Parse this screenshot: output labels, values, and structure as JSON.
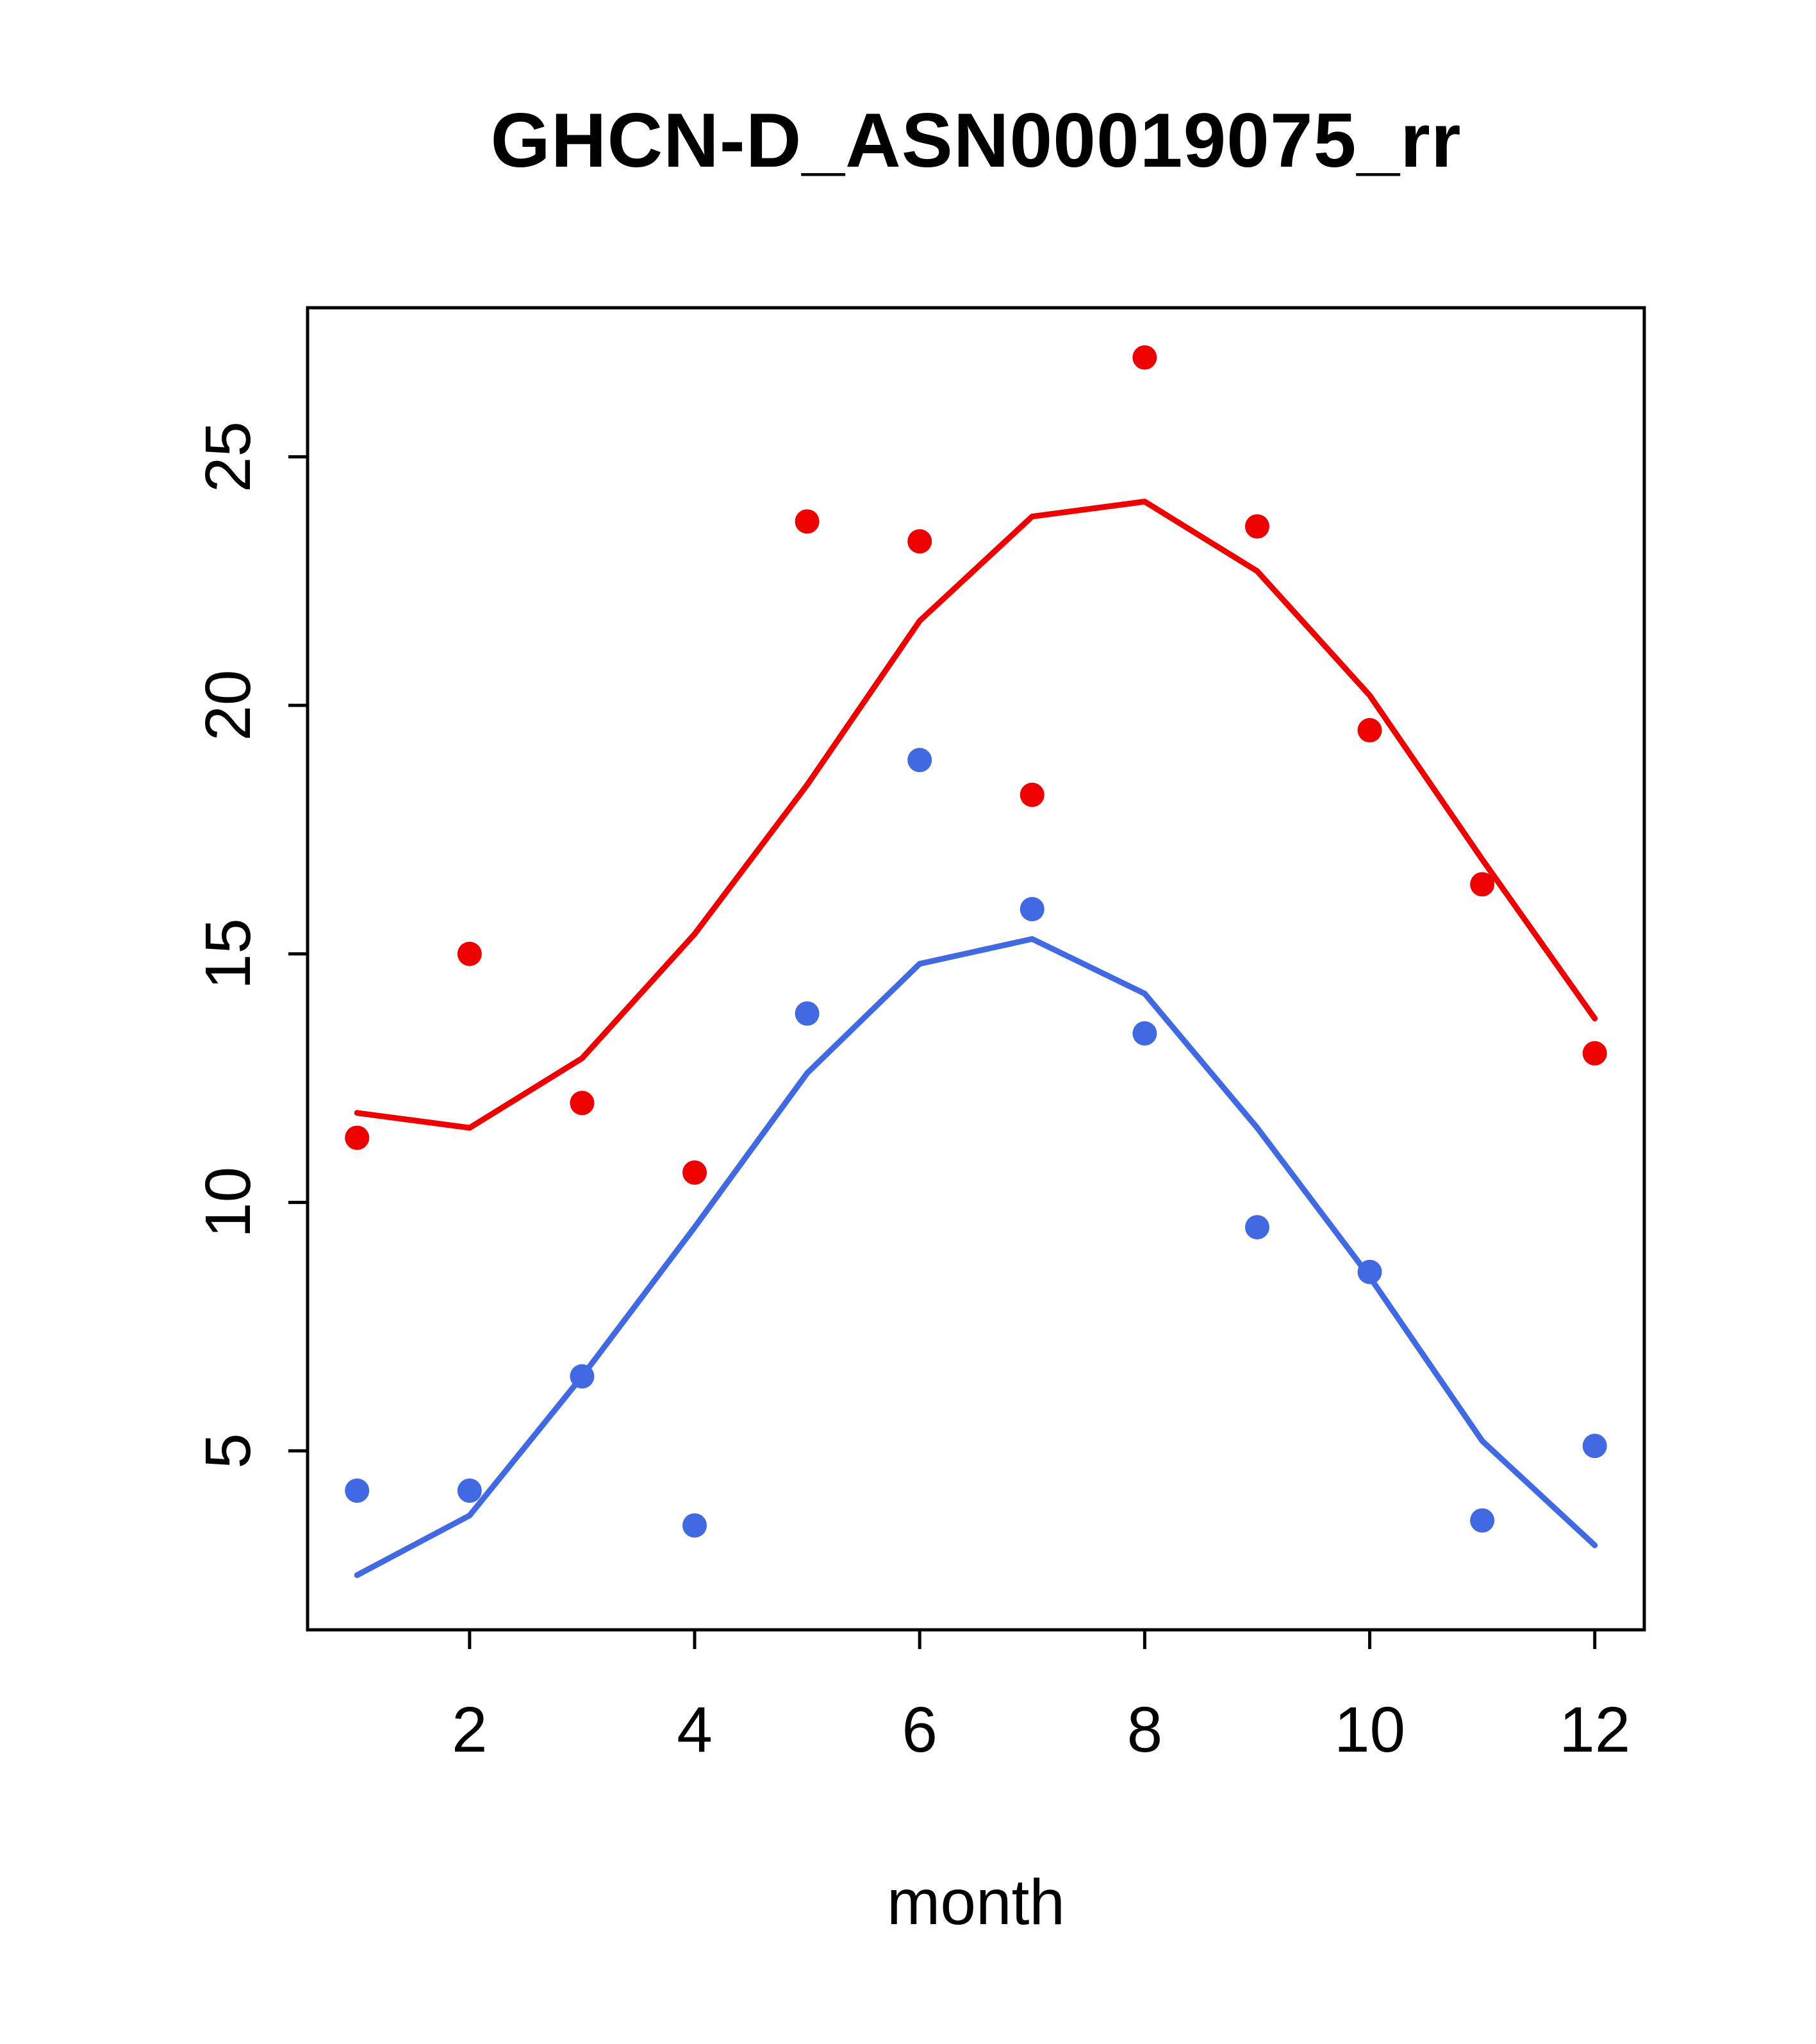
{
  "title": "GHCN-D_ASN00019075_rr",
  "chart_data": {
    "type": "scatter",
    "title": "GHCN-D_ASN00019075_rr",
    "xlabel": "month",
    "ylabel": "",
    "xlim": [
      0.56,
      12.44
    ],
    "ylim": [
      1.4,
      28.0
    ],
    "x_ticks": [
      2,
      4,
      6,
      8,
      10,
      12
    ],
    "y_ticks": [
      5,
      10,
      15,
      20,
      25
    ],
    "grid": false,
    "legend": "none",
    "x": [
      1,
      2,
      3,
      4,
      5,
      6,
      7,
      8,
      9,
      10,
      11,
      12
    ],
    "series": [
      {
        "name": "red-monthly-points",
        "kind": "points",
        "color": "#ee0000",
        "values": [
          11.3,
          15.0,
          12.0,
          10.6,
          23.7,
          23.3,
          18.2,
          27.0,
          23.6,
          19.5,
          16.4,
          13.0
        ]
      },
      {
        "name": "red-smooth-line",
        "kind": "line",
        "color": "#ee0000",
        "values": [
          11.8,
          11.5,
          12.9,
          15.4,
          18.4,
          21.7,
          23.8,
          24.1,
          22.7,
          20.2,
          16.9,
          13.7
        ]
      },
      {
        "name": "blue-monthly-points",
        "kind": "points",
        "color": "#4169e1",
        "values": [
          4.2,
          4.2,
          6.5,
          3.5,
          13.8,
          18.9,
          15.9,
          13.4,
          9.5,
          8.6,
          3.6,
          5.1
        ]
      },
      {
        "name": "blue-smooth-line",
        "kind": "line",
        "color": "#4169e1",
        "values": [
          2.5,
          3.7,
          6.5,
          9.5,
          12.6,
          14.8,
          15.3,
          14.2,
          11.5,
          8.5,
          5.2,
          3.1
        ]
      }
    ]
  }
}
